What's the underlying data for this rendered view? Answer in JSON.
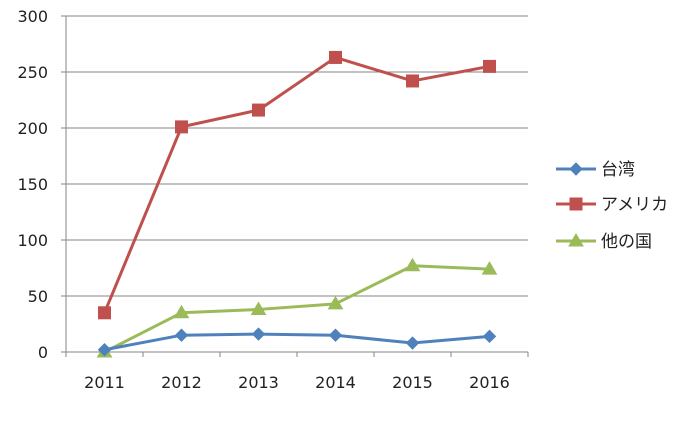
{
  "chart_data": {
    "type": "line",
    "title": "",
    "xlabel": "",
    "ylabel": "",
    "categories": [
      "2011",
      "2012",
      "2013",
      "2014",
      "2015",
      "2016"
    ],
    "ylim": [
      0,
      300
    ],
    "yticks": [
      "0",
      "50",
      "100",
      "150",
      "200",
      "250",
      "300"
    ],
    "grid": true,
    "legend_position": "right",
    "series": [
      {
        "name": "台湾",
        "values": [
          2,
          15,
          16,
          15,
          8,
          14
        ],
        "color": "#4f81bd",
        "marker": "diamond"
      },
      {
        "name": "アメリカ",
        "values": [
          35,
          201,
          216,
          263,
          242,
          255
        ],
        "color": "#c0504d",
        "marker": "square"
      },
      {
        "name": "他の国",
        "values": [
          0,
          35,
          38,
          43,
          77,
          74
        ],
        "color": "#9bbb59",
        "marker": "triangle"
      }
    ]
  }
}
